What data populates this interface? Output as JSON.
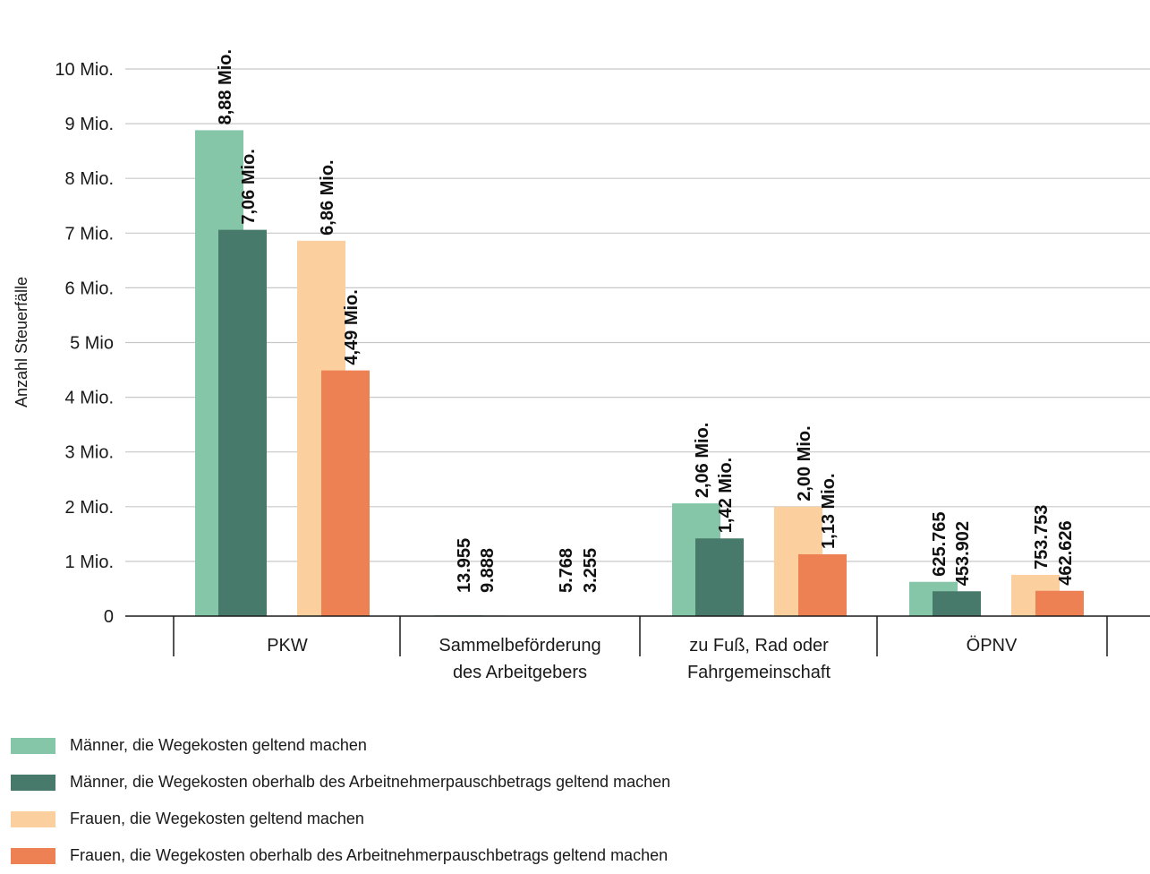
{
  "chart_data": {
    "type": "bar",
    "ylabel": "Anzahl Steuerfälle",
    "ylim": [
      0,
      10000000
    ],
    "grid": true,
    "legend_position": "bottom",
    "yticks": [
      {
        "value": 0,
        "label": "0"
      },
      {
        "value": 1000000,
        "label": "1 Mio."
      },
      {
        "value": 2000000,
        "label": "2 Mio."
      },
      {
        "value": 3000000,
        "label": "3 Mio."
      },
      {
        "value": 4000000,
        "label": "4 Mio."
      },
      {
        "value": 5000000,
        "label": "5 Mio"
      },
      {
        "value": 6000000,
        "label": "6 Mio."
      },
      {
        "value": 7000000,
        "label": "7 Mio."
      },
      {
        "value": 8000000,
        "label": "8 Mio."
      },
      {
        "value": 9000000,
        "label": "9 Mio."
      },
      {
        "value": 10000000,
        "label": "10 Mio."
      }
    ],
    "categories": [
      [
        "PKW"
      ],
      [
        "Sammelbeförderung",
        "des Arbeitgebers"
      ],
      [
        "zu Fuß, Rad oder",
        "Fahrgemeinschaft"
      ],
      [
        "ÖPNV"
      ]
    ],
    "series": [
      {
        "name": "Männer, die Wegekosten geltend machen",
        "color": "#85c5a8",
        "values": [
          8880000,
          13955,
          2060000,
          625765
        ],
        "labels": [
          "8,88 Mio.",
          "13.955",
          "2,06 Mio.",
          "625.765"
        ]
      },
      {
        "name": "Männer, die Wegekosten oberhalb des Arbeitnehmerpauschbetrags geltend machen",
        "color": "#477a6a",
        "values": [
          7060000,
          9888,
          1420000,
          453902
        ],
        "labels": [
          "7,06 Mio.",
          "9.888",
          "1,42 Mio.",
          "453.902"
        ]
      },
      {
        "name": "Frauen, die Wegekosten geltend machen",
        "color": "#fccf9e",
        "values": [
          6860000,
          5768,
          2000000,
          753753
        ],
        "labels": [
          "6,86 Mio.",
          "5.768",
          "2,00 Mio.",
          "753.753"
        ]
      },
      {
        "name": "Frauen, die Wegekosten oberhalb des Arbeitnehmerpauschbetrags geltend machen",
        "color": "#ee8153",
        "values": [
          4490000,
          3255,
          1130000,
          462626
        ],
        "labels": [
          "4,49 Mio.",
          "3.255",
          "1,13 Mio.",
          "462.626"
        ]
      }
    ]
  }
}
